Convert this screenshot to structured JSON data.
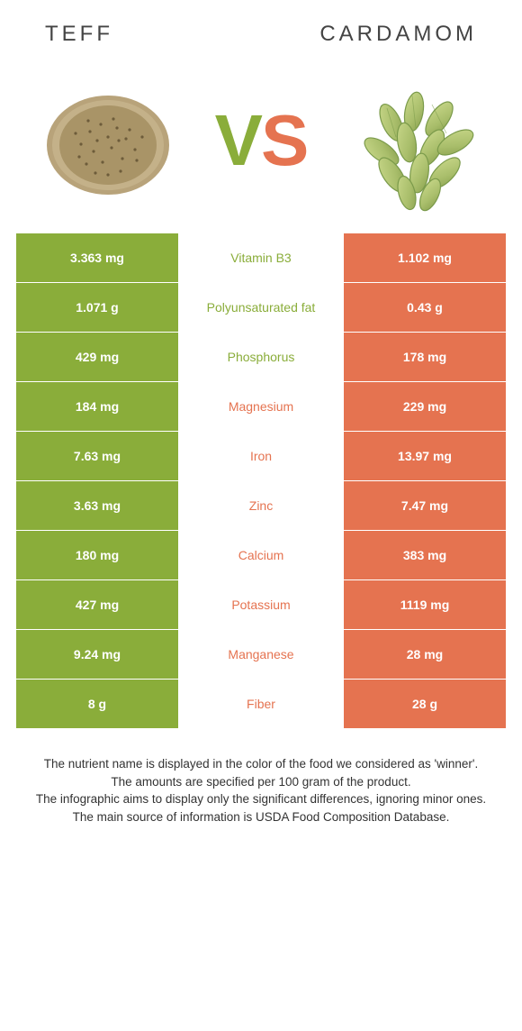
{
  "header": {
    "left_title": "Teff",
    "right_title": "Cardamom"
  },
  "vs": {
    "v": "V",
    "s": "S"
  },
  "colors": {
    "left": "#8aad3a",
    "right": "#e57350",
    "row_bg": "#ffffff"
  },
  "table": {
    "rows": [
      {
        "left": "3.363 mg",
        "label": "Vitamin B3",
        "right": "1.102 mg",
        "winner": "left"
      },
      {
        "left": "1.071 g",
        "label": "Polyunsaturated fat",
        "right": "0.43 g",
        "winner": "left"
      },
      {
        "left": "429 mg",
        "label": "Phosphorus",
        "right": "178 mg",
        "winner": "left"
      },
      {
        "left": "184 mg",
        "label": "Magnesium",
        "right": "229 mg",
        "winner": "right"
      },
      {
        "left": "7.63 mg",
        "label": "Iron",
        "right": "13.97 mg",
        "winner": "right"
      },
      {
        "left": "3.63 mg",
        "label": "Zinc",
        "right": "7.47 mg",
        "winner": "right"
      },
      {
        "left": "180 mg",
        "label": "Calcium",
        "right": "383 mg",
        "winner": "right"
      },
      {
        "left": "427 mg",
        "label": "Potassium",
        "right": "1119 mg",
        "winner": "right"
      },
      {
        "left": "9.24 mg",
        "label": "Manganese",
        "right": "28 mg",
        "winner": "right"
      },
      {
        "left": "8 g",
        "label": "Fiber",
        "right": "28 g",
        "winner": "right"
      }
    ]
  },
  "footer": {
    "line1": "The nutrient name is displayed in the color of the food we considered as 'winner'.",
    "line2": "The amounts are specified per 100 gram of the product.",
    "line3": "The infographic aims to display only the significant differences, ignoring minor ones.",
    "line4": "The main source of information is USDA Food Composition Database."
  }
}
